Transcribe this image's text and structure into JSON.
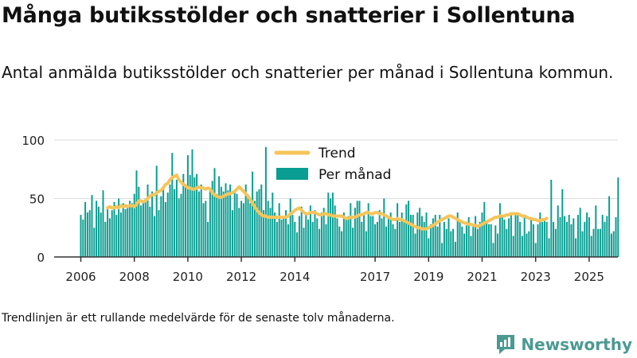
{
  "header": {
    "title": "Många butiksstölder och snatterier i Sollentuna",
    "subtitle": "Antal anmälda butiksstölder och snatterier per månad i Sollentuna kommun."
  },
  "footer": {
    "note": "Trendlinjen är ett rullande medelvärde för de senaste tolv månaderna.",
    "brand": "Newsworthy"
  },
  "colors": {
    "bars": "#0a9e92",
    "trend": "#f5c55a",
    "axis": "#333333",
    "grid": "#dddddd",
    "brand": "#4a9a92"
  },
  "chart_data": {
    "type": "bar",
    "x_start": "2006-01",
    "ylim": [
      0,
      100
    ],
    "yticks": [
      0,
      50,
      100
    ],
    "xtick_labels": [
      "2006",
      "2008",
      "2010",
      "2012",
      "2014",
      "2017",
      "2019",
      "2021",
      "2023",
      "2025"
    ],
    "legend": {
      "placement": "top-center",
      "trend_label": "Trend",
      "bars_label": "Per månad"
    },
    "grid": true,
    "series": [
      {
        "name": "Per månad",
        "type": "bar",
        "values": [
          36,
          32,
          47,
          38,
          40,
          53,
          25,
          48,
          43,
          38,
          57,
          30,
          43,
          33,
          40,
          47,
          36,
          50,
          38,
          46,
          41,
          42,
          48,
          46,
          54,
          74,
          60,
          44,
          48,
          50,
          62,
          43,
          56,
          35,
          78,
          40,
          52,
          60,
          47,
          55,
          62,
          89,
          58,
          66,
          50,
          54,
          71,
          62,
          87,
          70,
          92,
          68,
          71,
          56,
          62,
          46,
          48,
          30,
          57,
          65,
          76,
          54,
          69,
          60,
          56,
          63,
          57,
          62,
          40,
          57,
          54,
          42,
          48,
          46,
          62,
          53,
          46,
          73,
          48,
          56,
          58,
          62,
          40,
          94,
          48,
          42,
          55,
          38,
          30,
          46,
          32,
          35,
          40,
          28,
          50,
          36,
          30,
          21,
          35,
          43,
          25,
          38,
          32,
          44,
          30,
          40,
          33,
          24,
          38,
          42,
          28,
          55,
          50,
          55,
          44,
          33,
          26,
          22,
          38,
          33,
          35,
          46,
          25,
          42,
          48,
          48,
          30,
          38,
          22,
          46,
          35,
          35,
          28,
          30,
          40,
          33,
          50,
          26,
          33,
          38,
          28,
          24,
          46,
          30,
          38,
          30,
          45,
          48,
          36,
          36,
          20,
          38,
          42,
          35,
          30,
          38,
          16,
          28,
          33,
          36,
          26,
          36,
          12,
          30,
          24,
          33,
          22,
          24,
          13,
          38,
          30,
          26,
          20,
          27,
          34,
          18,
          26,
          35,
          24,
          30,
          38,
          47,
          30,
          28,
          28,
          12,
          27,
          20,
          46,
          36,
          32,
          24,
          33,
          38,
          18,
          37,
          37,
          30,
          18,
          34,
          20,
          22,
          32,
          28,
          12,
          28,
          38,
          30,
          32,
          30,
          16,
          66,
          30,
          24,
          44,
          34,
          58,
          35,
          30,
          36,
          28,
          33,
          16,
          36,
          42,
          22,
          30,
          38,
          34,
          18,
          24,
          44,
          24,
          24,
          36,
          30,
          35,
          52,
          20,
          22,
          34,
          68
        ]
      },
      {
        "name": "Trend",
        "type": "line",
        "start_index": 12,
        "values": [
          42,
          43,
          42,
          42,
          43,
          42,
          44,
          43,
          44,
          43,
          44,
          44,
          43,
          45,
          48,
          48,
          47,
          48,
          50,
          52,
          53,
          53,
          55,
          56,
          57,
          59,
          62,
          63,
          66,
          68,
          69,
          70,
          66,
          64,
          62,
          61,
          59,
          59,
          58,
          58,
          59,
          60,
          59,
          59,
          58,
          59,
          58,
          55,
          53,
          52,
          51,
          51,
          52,
          53,
          54,
          54,
          55,
          56,
          58,
          60,
          58,
          56,
          54,
          52,
          49,
          46,
          43,
          40,
          38,
          36,
          35,
          35,
          34,
          34,
          34,
          34,
          34,
          34,
          34,
          34,
          34,
          35,
          37,
          38,
          40,
          41,
          42,
          40,
          38,
          37,
          37,
          38,
          38,
          38,
          37,
          36,
          36,
          37,
          37,
          36,
          36,
          35,
          35,
          35,
          35,
          35,
          34,
          33,
          33,
          34,
          34,
          34,
          35,
          36,
          36,
          37,
          38,
          38,
          37,
          37,
          38,
          38,
          37,
          37,
          36,
          35,
          34,
          33,
          32,
          32,
          33,
          32,
          32,
          31,
          30,
          29,
          28,
          27,
          26,
          25,
          25,
          24,
          24,
          24,
          25,
          26,
          27,
          28,
          30,
          31,
          32,
          33,
          34,
          35,
          35,
          34,
          33,
          32,
          31,
          30,
          29,
          29,
          28,
          28,
          27,
          27,
          26,
          27,
          28,
          29,
          30,
          31,
          32,
          33,
          34,
          34,
          35,
          35,
          35,
          36,
          36,
          37,
          37,
          37,
          37,
          36,
          35,
          35,
          34,
          33,
          33,
          32,
          32,
          31,
          31,
          32,
          32,
          33
        ]
      }
    ]
  }
}
